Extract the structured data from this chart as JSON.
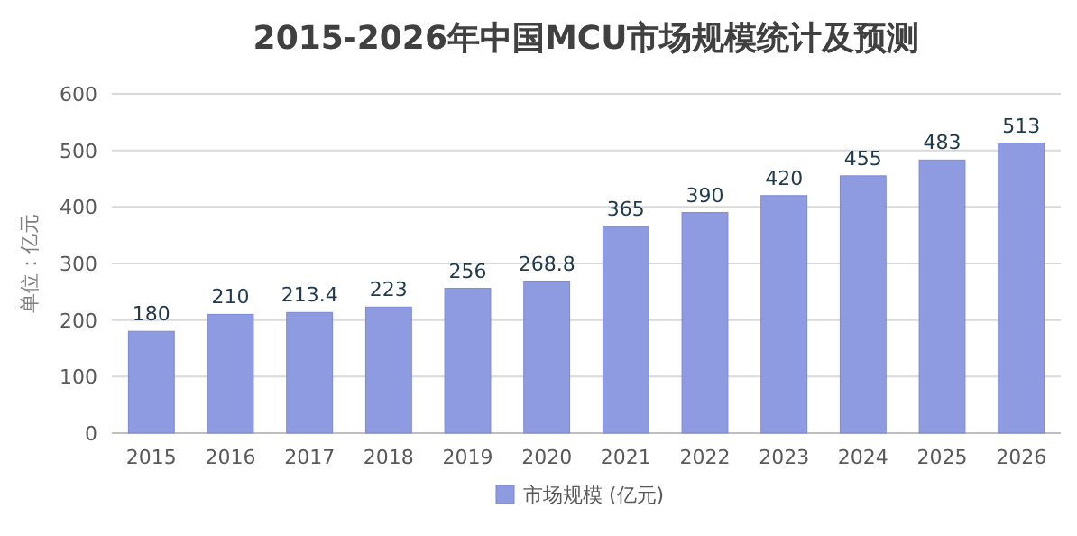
{
  "chart_data": {
    "type": "bar",
    "title": "2015-2026年中国MCU市场规模统计及预测",
    "ylabel": "单位：亿元",
    "categories": [
      "2015",
      "2016",
      "2017",
      "2018",
      "2019",
      "2020",
      "2021",
      "2022",
      "2023",
      "2024",
      "2025",
      "2026"
    ],
    "series": [
      {
        "name": "市场规模 (亿元)",
        "color": "#8f9be0",
        "values": [
          180,
          210,
          213.4,
          223,
          256,
          268.8,
          365,
          390,
          420,
          455,
          483,
          513
        ]
      }
    ],
    "ylim": [
      0,
      600
    ],
    "yticks": [
      0,
      100,
      200,
      300,
      400,
      500,
      600
    ],
    "grid": "y",
    "legend": "bottom",
    "data_labels": true
  }
}
